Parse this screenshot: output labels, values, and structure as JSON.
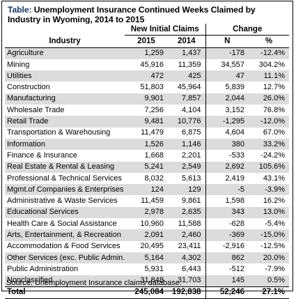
{
  "table": {
    "title_label": "Table:",
    "title_text": "Unemployment Insurance Continued Weeks Claimed by Industry in Wyoming, 2014 to 2015",
    "group_headers": {
      "claims": "New Initial Claims",
      "change": "Change"
    },
    "columns": {
      "industry": "Industry",
      "y2015": "2015",
      "y2014": "2014",
      "n": "N",
      "pct": "%"
    },
    "rows": [
      {
        "industry": "Agriculture",
        "y2015": "1,259",
        "y2014": "1,437",
        "n": "-178",
        "pct": "-12.4%"
      },
      {
        "industry": "Mining",
        "y2015": "45,916",
        "y2014": "11,359",
        "n": "34,557",
        "pct": "304.2%"
      },
      {
        "industry": "Utilities",
        "y2015": "472",
        "y2014": "425",
        "n": "47",
        "pct": "11.1%"
      },
      {
        "industry": "Construction",
        "y2015": "51,803",
        "y2014": "45,964",
        "n": "5,839",
        "pct": "12.7%"
      },
      {
        "industry": "Manufacturing",
        "y2015": "9,901",
        "y2014": "7,857",
        "n": "2,044",
        "pct": "26.0%"
      },
      {
        "industry": "Wholesale Trade",
        "y2015": "7,256",
        "y2014": "4,104",
        "n": "3,152",
        "pct": "76.8%"
      },
      {
        "industry": "Retail Trade",
        "y2015": "9,481",
        "y2014": "10,776",
        "n": "-1,295",
        "pct": "-12.0%"
      },
      {
        "industry": "Transportation & Warehousing",
        "y2015": "11,479",
        "y2014": "6,875",
        "n": "4,604",
        "pct": "67.0%"
      },
      {
        "industry": "Information",
        "y2015": "1,526",
        "y2014": "1,146",
        "n": "380",
        "pct": "33.2%"
      },
      {
        "industry": "Finance & Insurance",
        "y2015": "1,668",
        "y2014": "2,201",
        "n": "-533",
        "pct": "-24.2%"
      },
      {
        "industry": "Real Estate & Rental & Leasing",
        "y2015": "5,241",
        "y2014": "2,549",
        "n": "2,692",
        "pct": "105.6%"
      },
      {
        "industry": "Professional & Technical Services",
        "y2015": "8,032",
        "y2014": "5,613",
        "n": "2,419",
        "pct": "43.1%"
      },
      {
        "industry": "Mgmt.of Companies & Enterprises",
        "y2015": "124",
        "y2014": "129",
        "n": "-5",
        "pct": "-3.9%"
      },
      {
        "industry": "Administrative & Waste Services",
        "y2015": "11,459",
        "y2014": "9,861",
        "n": "1,598",
        "pct": "16.2%"
      },
      {
        "industry": "Educational Services",
        "y2015": "2,978",
        "y2014": "2,635",
        "n": "343",
        "pct": "13.0%"
      },
      {
        "industry": "Health Care & Social Assistance",
        "y2015": "10,960",
        "y2014": "11,588",
        "n": "-628",
        "pct": "-5.4%"
      },
      {
        "industry": "Arts, Entertainment, & Recreation",
        "y2015": "2,091",
        "y2014": "2,460",
        "n": "-369",
        "pct": "-15.0%"
      },
      {
        "industry": "Accommodation & Food Services",
        "y2015": "20,495",
        "y2014": "23,411",
        "n": "-2,916",
        "pct": "-12.5%"
      },
      {
        "industry": "Other Services (exc. Public Admin.)",
        "y2015": "5,164",
        "y2014": "4,302",
        "n": "862",
        "pct": "20.0%"
      },
      {
        "industry": "Public Administration",
        "y2015": "5,931",
        "y2014": "6,443",
        "n": "-512",
        "pct": "-7.9%"
      },
      {
        "industry": "Nonclassified",
        "y2015": "31,848",
        "y2014": "31,703",
        "n": "145",
        "pct": "0.5%"
      }
    ],
    "total": {
      "industry": "Total",
      "y2015": "245,084",
      "y2014": "192,838",
      "n": "52,246",
      "pct": "27.1%"
    },
    "source": "Source: Unemployment Insurance claims database.",
    "colors": {
      "title_label": "#17375e",
      "stripe": "#dcdcdc",
      "rule": "#000000"
    }
  }
}
